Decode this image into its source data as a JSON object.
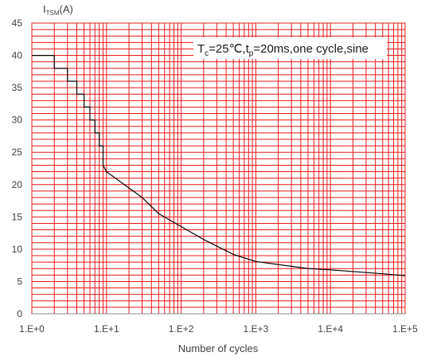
{
  "chart_data": {
    "type": "line",
    "ylabel": {
      "main": "I",
      "sub": "TSM",
      "unit": "(A)"
    },
    "xlabel": "Number of cycles",
    "x_scale": "log",
    "xlim": [
      1,
      100000
    ],
    "ylim": [
      0,
      45
    ],
    "x_ticks": [
      {
        "value": 1,
        "label": "1.E+0"
      },
      {
        "value": 10,
        "label": "1.E+1"
      },
      {
        "value": 100,
        "label": "1.E+2"
      },
      {
        "value": 1000,
        "label": "1.E+3"
      },
      {
        "value": 10000,
        "label": "1.E+4"
      },
      {
        "value": 100000,
        "label": "1.E+5"
      }
    ],
    "y_ticks": [
      0,
      5,
      10,
      15,
      20,
      25,
      30,
      35,
      40,
      45
    ],
    "grid": {
      "major": true,
      "minor_x": true,
      "minor_y_step": 1,
      "color": "#e8181a"
    },
    "annotation": {
      "parts": [
        {
          "text": "T",
          "sub": false
        },
        {
          "text": "c",
          "sub": true
        },
        {
          "text": "=25℃,t",
          "sub": false
        },
        {
          "text": "p",
          "sub": true
        },
        {
          "text": "=20ms,one cycle,sine",
          "sub": false
        }
      ],
      "position": "top-right"
    },
    "series": [
      {
        "color": "#000000",
        "x": [
          1,
          2,
          2,
          3,
          3,
          4,
          4,
          5,
          5,
          6,
          6,
          7,
          7,
          8,
          8,
          9,
          9,
          10,
          30,
          50,
          100,
          200,
          500,
          1000,
          5000,
          10000,
          50000,
          100000
        ],
        "y": [
          40,
          40,
          38,
          38,
          36,
          36,
          34,
          34,
          32,
          32,
          30,
          30,
          28,
          28,
          26,
          26,
          23,
          22,
          18,
          15.5,
          13.5,
          11.5,
          9.2,
          8.1,
          7,
          6.8,
          6.2,
          5.9
        ]
      }
    ]
  }
}
